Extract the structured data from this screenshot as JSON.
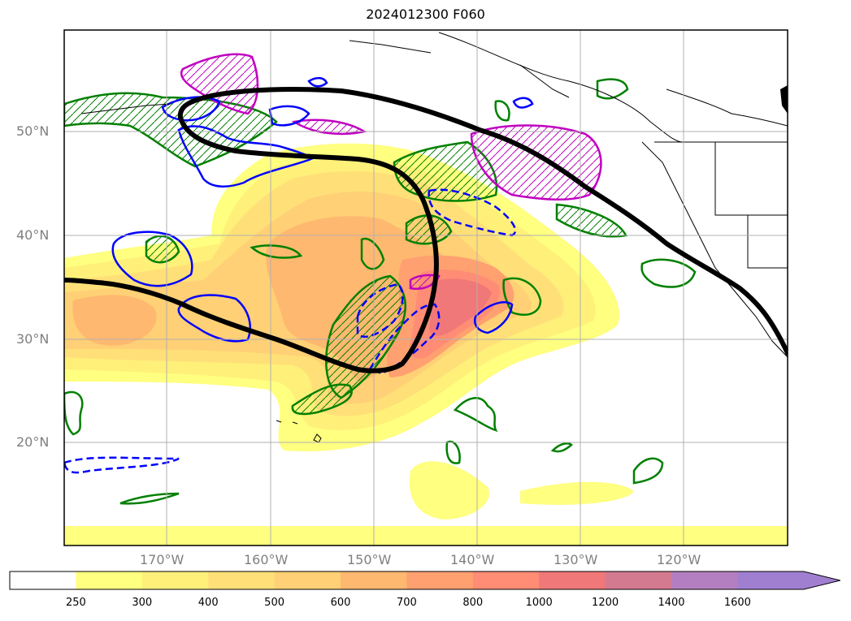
{
  "title": "2024012300 F060",
  "lat_labels": [
    "50°N",
    "40°N",
    "30°N",
    "20°N"
  ],
  "lon_labels": [
    "170°W",
    "160°W",
    "150°W",
    "140°W",
    "130°W",
    "120°W"
  ],
  "colorbar": {
    "ticks": [
      "250",
      "300",
      "400",
      "500",
      "600",
      "700",
      "800",
      "1000",
      "1200",
      "1400",
      "1600"
    ],
    "colors": [
      "#ffff80",
      "#fff07a",
      "#ffe078",
      "#ffd075",
      "#ffb870",
      "#ffa070",
      "#ff8c75",
      "#f07878",
      "#d47a90",
      "#b47fc0",
      "#a07fd0"
    ],
    "extend": "max"
  },
  "styles": {
    "jet_contour_color": "#000000",
    "green_contour_color": "#008000",
    "blue_contour_color": "#0000ff",
    "magenta_contour_color": "#c000c0",
    "gridline_color": "#b0b0b0"
  }
}
